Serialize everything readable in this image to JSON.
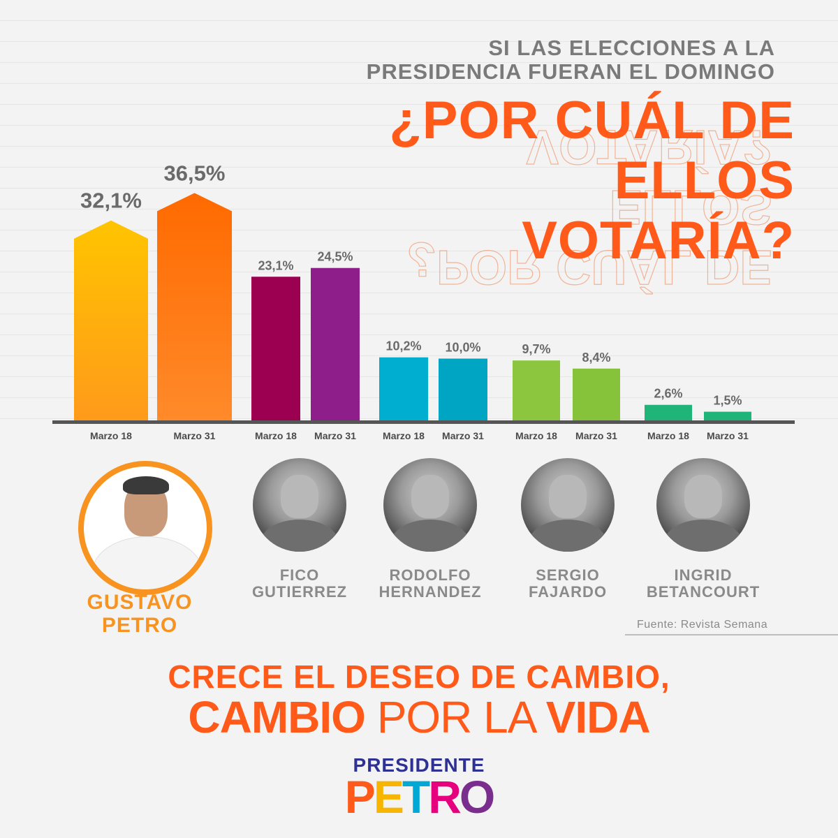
{
  "header": {
    "pretitle_line1": "SI LAS ELECCIONES A LA",
    "pretitle_line2": "PRESIDENCIA FUERAN EL DOMINGO",
    "title_line1": "¿POR CUÁL DE",
    "title_line2": "ELLOS",
    "title_line3": "VOTARÍA?"
  },
  "chart_data": {
    "type": "bar",
    "categories": [
      "Marzo 18",
      "Marzo 31",
      "Marzo 18",
      "Marzo 31",
      "Marzo 18",
      "Marzo 31",
      "Marzo 18",
      "Marzo 31",
      "Marzo 18",
      "Marzo 31"
    ],
    "values": [
      32.1,
      36.5,
      23.1,
      24.5,
      10.2,
      10.0,
      9.7,
      8.4,
      2.6,
      1.5
    ],
    "labels": [
      "32,1%",
      "36,5%",
      "23,1%",
      "24,5%",
      "10,2%",
      "10,0%",
      "9,7%",
      "8,4%",
      "2,6%",
      "1,5%"
    ],
    "colors": [
      "#ffb000",
      "#ff6a00",
      "#9b0051",
      "#8e1f8a",
      "#00aed0",
      "#00a5c4",
      "#8cc63f",
      "#86c33a",
      "#1fb578",
      "#1fb578"
    ],
    "ylim": [
      0,
      40
    ],
    "grid": false,
    "legend": "none"
  },
  "candidates": [
    {
      "line1": "GUSTAVO",
      "line2": "PETRO"
    },
    {
      "line1": "FICO",
      "line2": "GUTIERREZ"
    },
    {
      "line1": "RODOLFO",
      "line2": "HERNANDEZ"
    },
    {
      "line1": "SERGIO",
      "line2": "FAJARDO"
    },
    {
      "line1": "INGRID",
      "line2": "BETANCOURT"
    }
  ],
  "source": "Fuente: Revista Semana",
  "slogan": {
    "line1": "CRECE EL DESEO DE CAMBIO,",
    "word1": "CAMBIO",
    "word2": "POR LA",
    "word3": "VIDA"
  },
  "logo": {
    "top": "PRESIDENTE",
    "letters": [
      "P",
      "E",
      "T",
      "R",
      "O"
    ],
    "letter_colors": [
      "#ff5a1a",
      "#f7b500",
      "#00a8d6",
      "#e6007e",
      "#7b2d8e"
    ]
  }
}
